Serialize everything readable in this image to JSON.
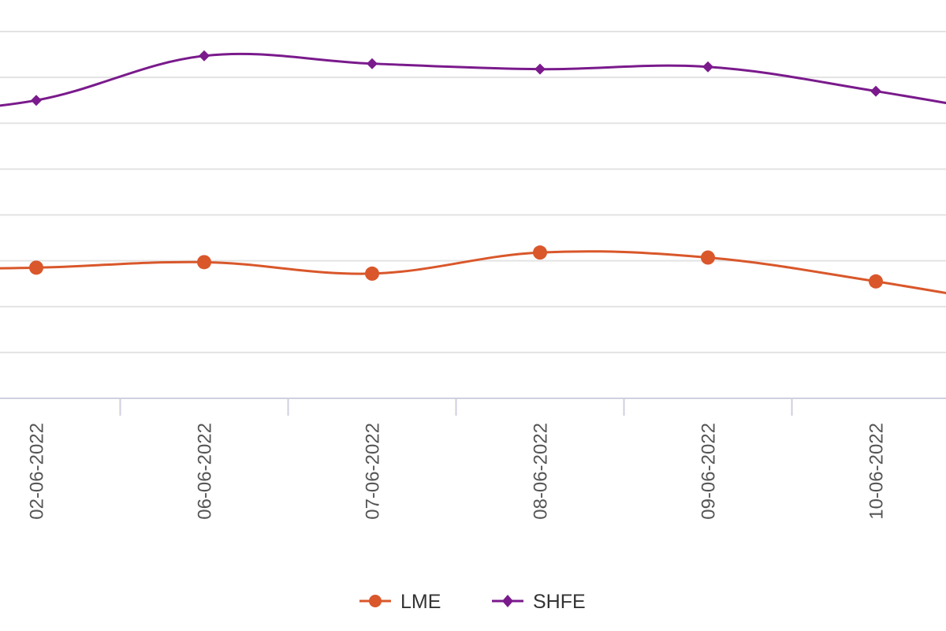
{
  "chart_data": {
    "type": "line",
    "x": [
      "02-06-2022",
      "06-06-2022",
      "07-06-2022",
      "08-06-2022",
      "09-06-2022",
      "10-06-2022"
    ],
    "series": [
      {
        "name": "LME",
        "values": [
          4.85,
          4.97,
          4.72,
          5.18,
          5.07,
          4.55
        ],
        "color": "#d9572b",
        "marker": "circle"
      },
      {
        "name": "SHFE",
        "values": [
          8.5,
          9.47,
          9.3,
          9.18,
          9.23,
          8.7
        ],
        "color": "#7a1a8c",
        "marker": "diamond"
      }
    ],
    "ylim": [
      2,
      10
    ],
    "grid": true,
    "legend_position": "bottom-center"
  }
}
